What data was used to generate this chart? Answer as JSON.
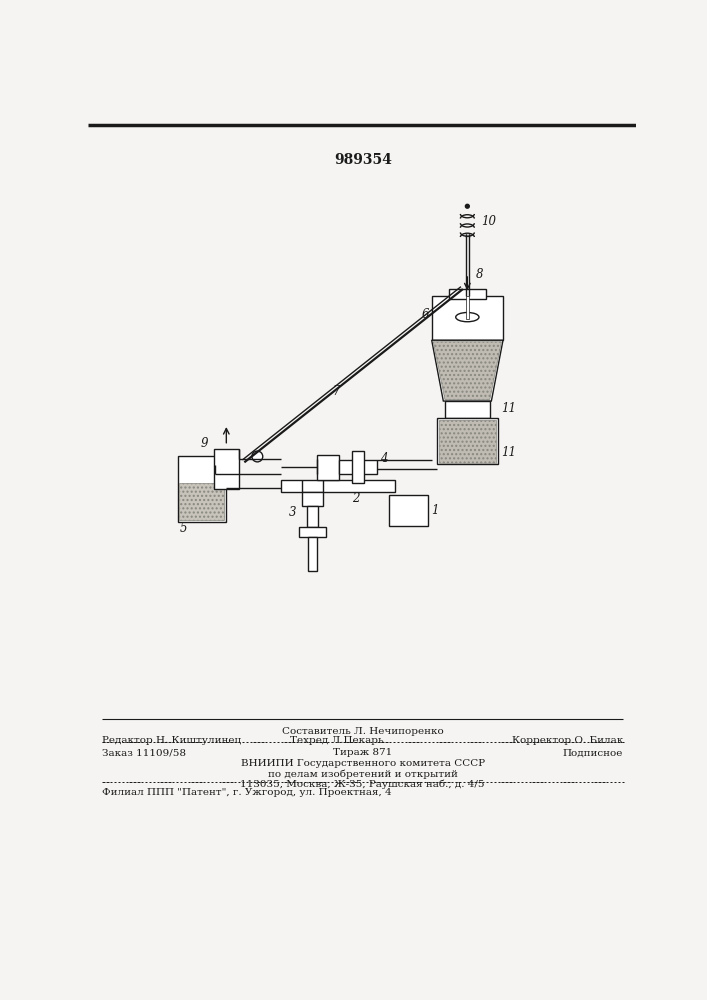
{
  "patent_number": "989354",
  "background_color": "#f5f4f2",
  "line_color": "#1a1a1a",
  "hatch_color": "#999990",
  "text_color": "#1a1a1a",
  "bottom_texts": {
    "line1_left": "Редактор Н. Киштулинец",
    "line1_center_top": "Составитель Л. Нечипоренко",
    "line1_center_bot": "Техред Л.Пекарь",
    "line1_right": "Корректор О. Билак",
    "line2_left": "Заказ 11109/58",
    "line2_center": "Тираж 871",
    "line2_right": "Подписное",
    "line3": "ВНИИПИ Государственного комитета СССР",
    "line4": "по делам изобретений и открытий",
    "line5": "113035, Москва, Ж-35, Раушская наб., д. 4/5",
    "line6": "Филиал ППП \"Патент\", г. Ужгород, ул. Проектная, 4"
  }
}
